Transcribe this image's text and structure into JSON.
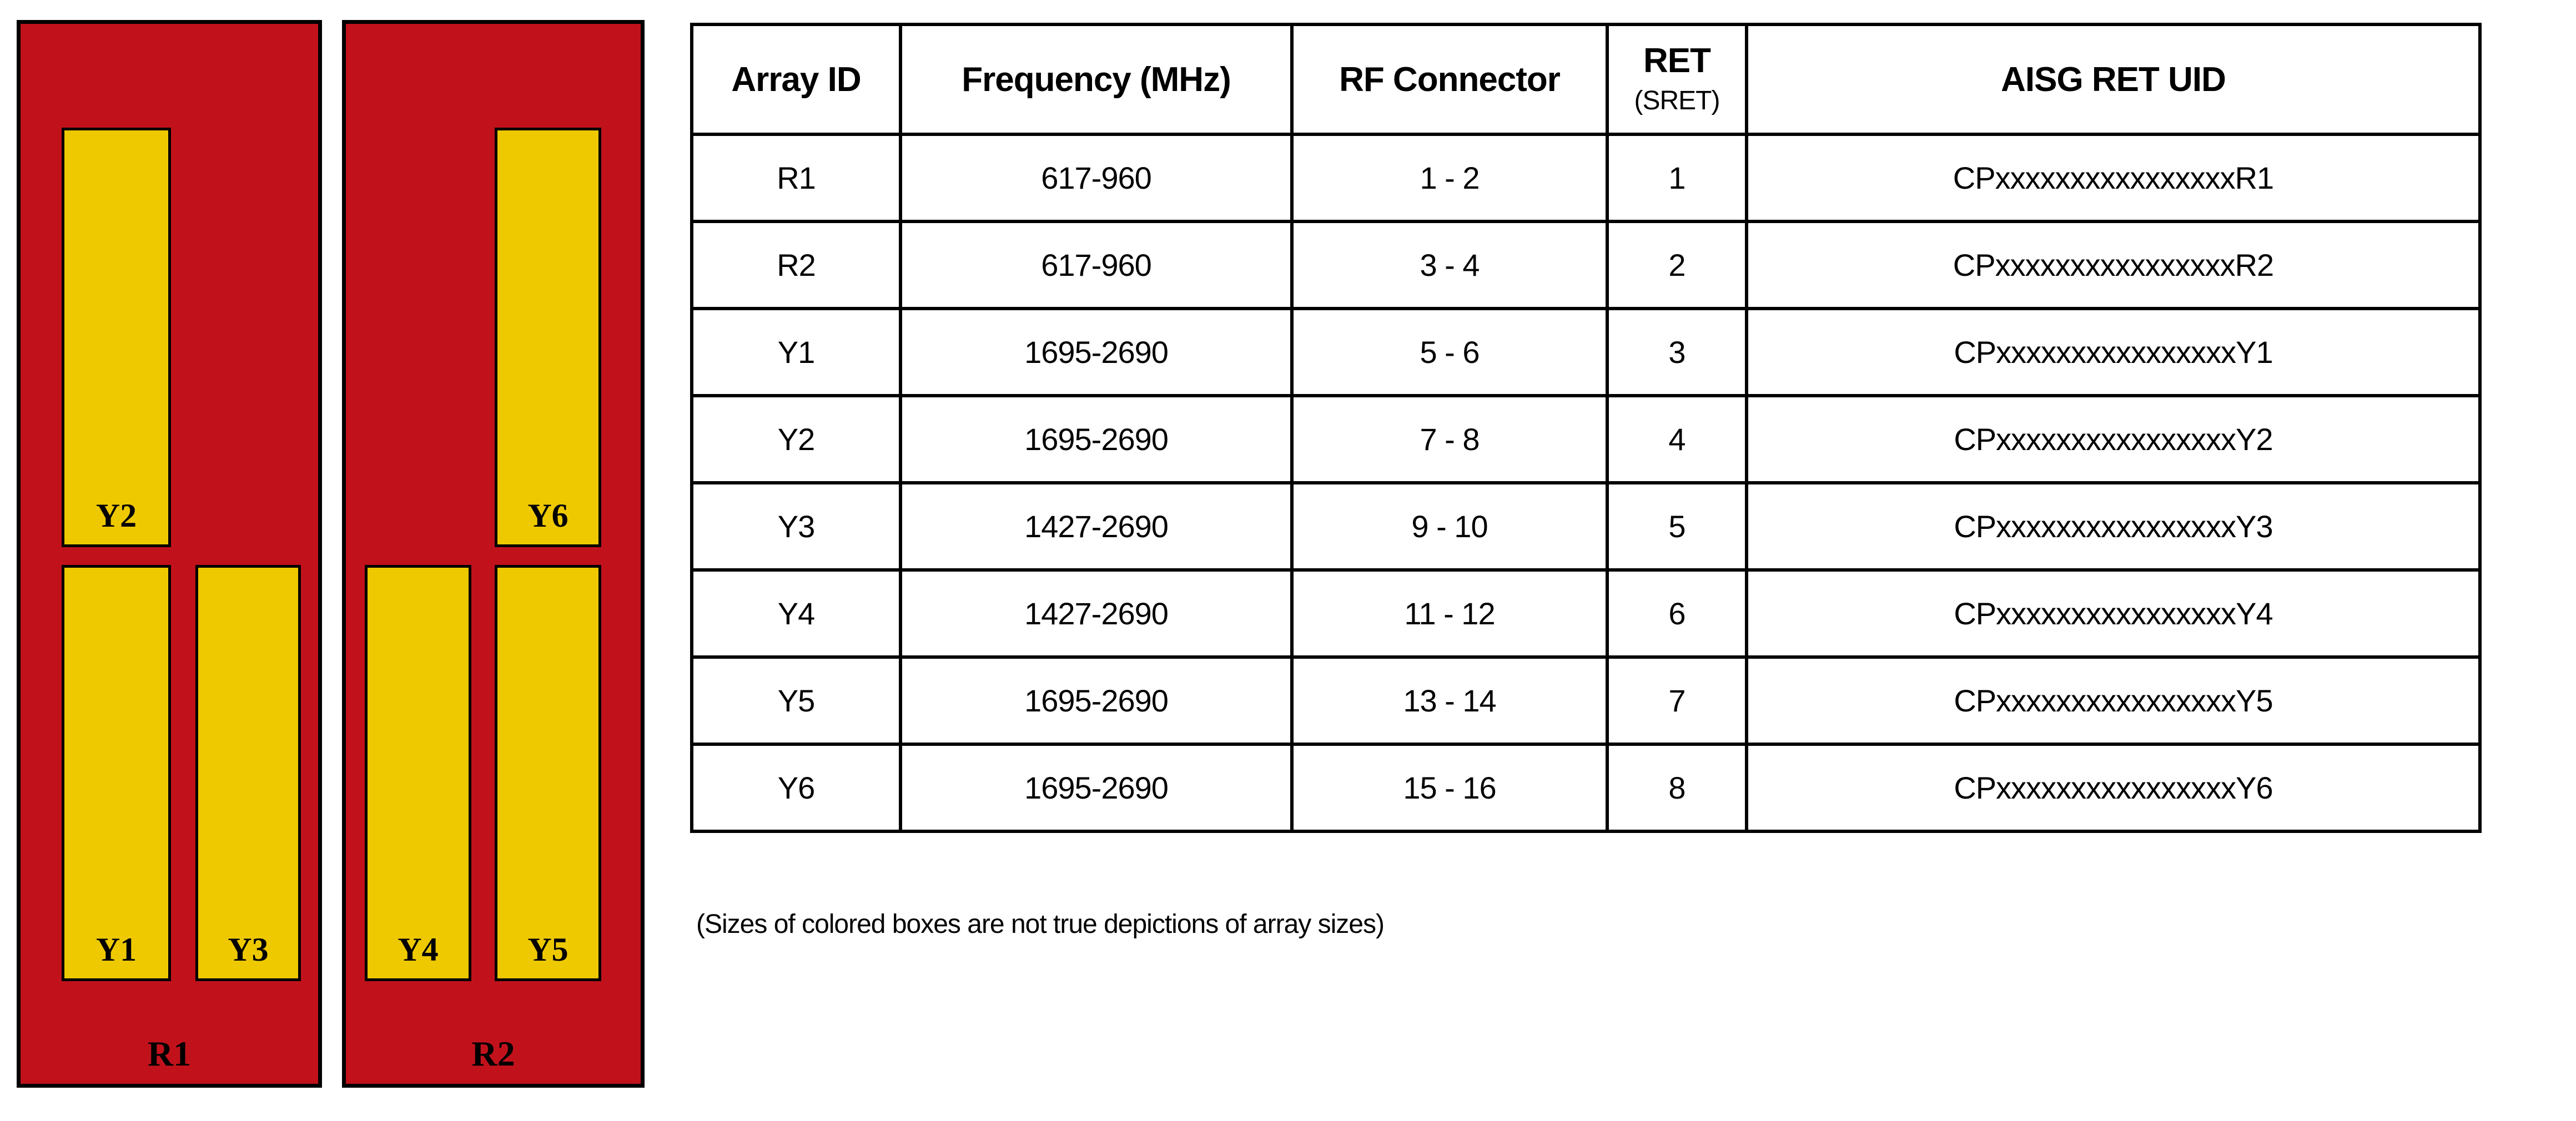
{
  "diagram": {
    "panels": [
      {
        "label": "R1",
        "boxes": [
          {
            "id": "Y2"
          },
          {
            "id": "Y1"
          },
          {
            "id": "Y3"
          }
        ]
      },
      {
        "label": "R2",
        "boxes": [
          {
            "id": "Y6"
          },
          {
            "id": "Y4"
          },
          {
            "id": "Y5"
          }
        ]
      }
    ]
  },
  "table": {
    "headers": {
      "array_id": "Array ID",
      "frequency": "Frequency (MHz)",
      "rf_connector": "RF Connector",
      "ret": "RET",
      "ret_sub": "(SRET)",
      "aisg_ret_uid": "AISG RET UID"
    },
    "rows": [
      {
        "array_id": "R1",
        "frequency": "617-960",
        "rf_connector": "1 - 2",
        "ret": "1",
        "aisg_ret_uid": "CPxxxxxxxxxxxxxxxxR1"
      },
      {
        "array_id": "R2",
        "frequency": "617-960",
        "rf_connector": "3 - 4",
        "ret": "2",
        "aisg_ret_uid": "CPxxxxxxxxxxxxxxxxR2"
      },
      {
        "array_id": "Y1",
        "frequency": "1695-2690",
        "rf_connector": "5 - 6",
        "ret": "3",
        "aisg_ret_uid": "CPxxxxxxxxxxxxxxxxY1"
      },
      {
        "array_id": "Y2",
        "frequency": "1695-2690",
        "rf_connector": "7 - 8",
        "ret": "4",
        "aisg_ret_uid": "CPxxxxxxxxxxxxxxxxY2"
      },
      {
        "array_id": "Y3",
        "frequency": "1427-2690",
        "rf_connector": "9 - 10",
        "ret": "5",
        "aisg_ret_uid": "CPxxxxxxxxxxxxxxxxY3"
      },
      {
        "array_id": "Y4",
        "frequency": "1427-2690",
        "rf_connector": "11 - 12",
        "ret": "6",
        "aisg_ret_uid": "CPxxxxxxxxxxxxxxxxY4"
      },
      {
        "array_id": "Y5",
        "frequency": "1695-2690",
        "rf_connector": "13 - 14",
        "ret": "7",
        "aisg_ret_uid": "CPxxxxxxxxxxxxxxxxY5"
      },
      {
        "array_id": "Y6",
        "frequency": "1695-2690",
        "rf_connector": "15 - 16",
        "ret": "8",
        "aisg_ret_uid": "CPxxxxxxxxxxxxxxxxY6"
      }
    ]
  },
  "note": "(Sizes of colored boxes are not true depictions of array sizes)",
  "colors": {
    "panel_red": "#C1121C",
    "array_yellow": "#EEC900",
    "border_black": "#000000",
    "text_black": "#000000"
  }
}
